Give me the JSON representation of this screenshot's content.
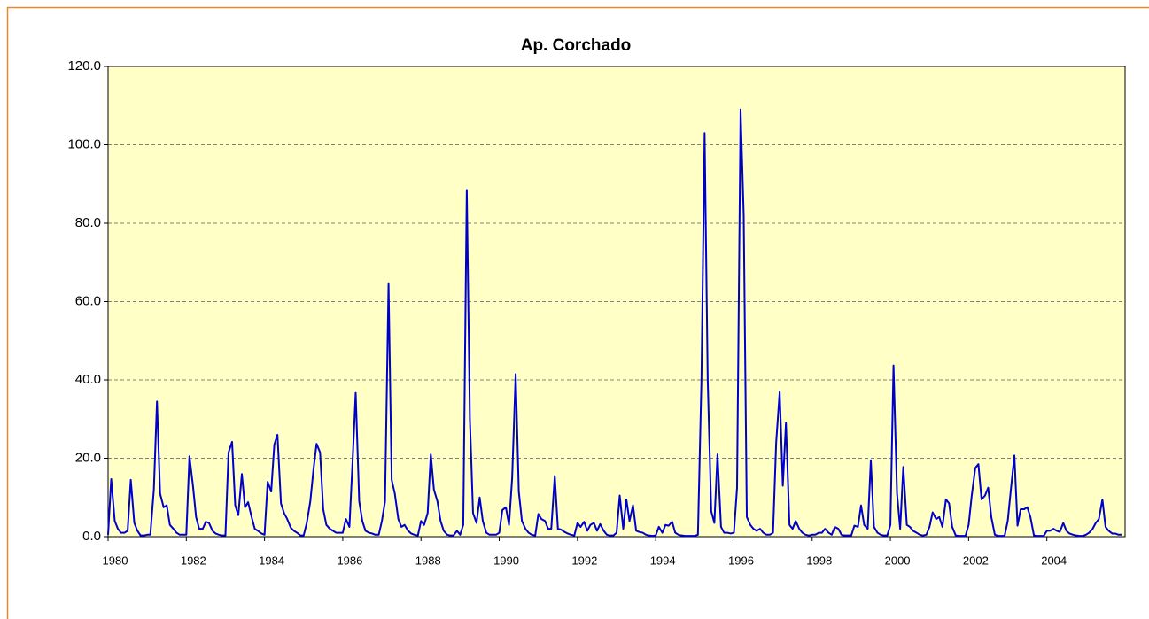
{
  "chart_data": {
    "type": "line",
    "title": "Ap. Corchado",
    "color": "#0000cc",
    "xlim": [
      1980,
      2006
    ],
    "xticks": [
      1980,
      1982,
      1984,
      1986,
      1988,
      1990,
      1992,
      1994,
      1996,
      1998,
      2000,
      2002,
      2004
    ],
    "ylim": [
      0,
      120
    ],
    "yticks": [
      {
        "value": 0,
        "label": "0.0"
      },
      {
        "value": 20,
        "label": "20.0"
      },
      {
        "value": 40,
        "label": "40.0"
      },
      {
        "value": 60,
        "label": "60.0"
      },
      {
        "value": 80,
        "label": "80.0"
      },
      {
        "value": 100,
        "label": "100.0"
      },
      {
        "value": 120,
        "label": "120.0"
      }
    ],
    "grid": true,
    "x": [
      1980,
      1980.08,
      1980.17,
      1980.25,
      1980.33,
      1980.42,
      1980.5,
      1980.58,
      1980.67,
      1980.75,
      1980.83,
      1980.92,
      1981,
      1981.08,
      1981.17,
      1981.25,
      1981.33,
      1981.42,
      1981.5,
      1981.58,
      1981.67,
      1981.75,
      1981.83,
      1981.92,
      1982,
      1982.08,
      1982.17,
      1982.25,
      1982.33,
      1982.42,
      1982.5,
      1982.58,
      1982.67,
      1982.75,
      1982.83,
      1982.92,
      1983,
      1983.08,
      1983.17,
      1983.25,
      1983.33,
      1983.42,
      1983.5,
      1983.58,
      1983.67,
      1983.75,
      1983.83,
      1983.92,
      1984,
      1984.08,
      1984.17,
      1984.25,
      1984.33,
      1984.42,
      1984.5,
      1984.58,
      1984.67,
      1984.75,
      1984.83,
      1984.92,
      1985,
      1985.08,
      1985.17,
      1985.25,
      1985.33,
      1985.42,
      1985.5,
      1985.58,
      1985.67,
      1985.75,
      1985.83,
      1985.92,
      1986,
      1986.08,
      1986.17,
      1986.25,
      1986.33,
      1986.42,
      1986.5,
      1986.58,
      1986.67,
      1986.75,
      1986.83,
      1986.92,
      1987,
      1987.08,
      1987.17,
      1987.25,
      1987.33,
      1987.42,
      1987.5,
      1987.58,
      1987.67,
      1987.75,
      1987.83,
      1987.92,
      1988,
      1988.08,
      1988.17,
      1988.25,
      1988.33,
      1988.42,
      1988.5,
      1988.58,
      1988.67,
      1988.75,
      1988.83,
      1988.92,
      1989,
      1989.08,
      1989.17,
      1989.25,
      1989.33,
      1989.42,
      1989.5,
      1989.58,
      1989.67,
      1989.75,
      1989.83,
      1989.92,
      1990,
      1990.08,
      1990.17,
      1990.25,
      1990.33,
      1990.42,
      1990.5,
      1990.58,
      1990.67,
      1990.75,
      1990.83,
      1990.92,
      1991,
      1991.08,
      1991.17,
      1991.25,
      1991.33,
      1991.42,
      1991.5,
      1991.58,
      1991.67,
      1991.75,
      1991.83,
      1991.92,
      1992,
      1992.08,
      1992.17,
      1992.25,
      1992.33,
      1992.42,
      1992.5,
      1992.58,
      1992.67,
      1992.75,
      1992.83,
      1992.92,
      1993,
      1993.08,
      1993.17,
      1993.25,
      1993.33,
      1993.42,
      1993.5,
      1993.58,
      1993.67,
      1993.75,
      1993.83,
      1993.92,
      1994,
      1994.08,
      1994.17,
      1994.25,
      1994.33,
      1994.42,
      1994.5,
      1994.58,
      1994.67,
      1994.75,
      1994.83,
      1994.92,
      1995,
      1995.08,
      1995.17,
      1995.25,
      1995.33,
      1995.42,
      1995.5,
      1995.58,
      1995.67,
      1995.75,
      1995.83,
      1995.92,
      1996,
      1996.08,
      1996.17,
      1996.25,
      1996.33,
      1996.42,
      1996.5,
      1996.58,
      1996.67,
      1996.75,
      1996.83,
      1996.92,
      1997,
      1997.08,
      1997.17,
      1997.25,
      1997.33,
      1997.42,
      1997.5,
      1997.58,
      1997.67,
      1997.75,
      1997.83,
      1997.92,
      1998,
      1998.08,
      1998.17,
      1998.25,
      1998.33,
      1998.42,
      1998.5,
      1998.58,
      1998.67,
      1998.75,
      1998.83,
      1998.92,
      1999,
      1999.08,
      1999.17,
      1999.25,
      1999.33,
      1999.42,
      1999.5,
      1999.58,
      1999.67,
      1999.75,
      1999.83,
      1999.92,
      2000,
      2000.08,
      2000.17,
      2000.25,
      2000.33,
      2000.42,
      2000.5,
      2000.58,
      2000.67,
      2000.75,
      2000.83,
      2000.92,
      2001,
      2001.08,
      2001.17,
      2001.25,
      2001.33,
      2001.42,
      2001.5,
      2001.58,
      2001.67,
      2001.75,
      2001.83,
      2001.92,
      2002,
      2002.08,
      2002.17,
      2002.25,
      2002.33,
      2002.42,
      2002.5,
      2002.58,
      2002.67,
      2002.75,
      2002.83,
      2002.92,
      2003,
      2003.08,
      2003.17,
      2003.25,
      2003.33,
      2003.42,
      2003.5,
      2003.58,
      2003.67,
      2003.75,
      2003.83,
      2003.92,
      2004,
      2004.08,
      2004.17,
      2004.25,
      2004.33,
      2004.42,
      2004.5,
      2004.58,
      2004.67,
      2004.75,
      2004.83,
      2004.92,
      2005,
      2005.08,
      2005.17,
      2005.25,
      2005.33,
      2005.42,
      2005.5,
      2005.58,
      2005.67,
      2005.75,
      2005.83,
      2005.92
    ],
    "values": [
      0.5,
      14.7,
      4,
      2,
      1,
      1,
      1.5,
      14.5,
      3.5,
      1.5,
      0.3,
      0.3,
      0.5,
      0.5,
      12,
      34.5,
      11,
      7.5,
      8,
      3,
      2,
      1,
      0.5,
      0.5,
      0.5,
      20.5,
      13,
      5,
      2,
      2,
      3.8,
      3.5,
      1.5,
      0.8,
      0.5,
      0.3,
      0.3,
      21.5,
      24.2,
      8,
      5.5,
      16,
      7.5,
      8.8,
      5,
      2,
      1.5,
      0.8,
      0.5,
      14,
      11.5,
      23.5,
      26,
      8.5,
      6,
      4.5,
      2.3,
      1.5,
      1,
      0.3,
      0.3,
      3.5,
      9,
      17,
      23.7,
      21.5,
      7,
      3,
      2,
      1.5,
      1,
      1,
      1,
      4.5,
      2.5,
      19,
      36.7,
      9,
      4,
      1.5,
      1,
      0.8,
      0.5,
      0.5,
      4,
      9,
      64.5,
      14.5,
      11,
      4.5,
      2.5,
      3,
      1.5,
      0.8,
      0.5,
      0.3,
      4,
      3,
      6,
      21,
      12,
      9,
      4,
      1.5,
      0.5,
      0.3,
      0.3,
      1.5,
      0.5,
      3,
      88.5,
      30,
      6,
      3.5,
      10,
      4,
      1,
      0.5,
      0.5,
      0.5,
      1,
      6.8,
      7.5,
      3,
      15,
      41.5,
      11.5,
      4,
      2,
      1,
      0.5,
      0.3,
      5.8,
      4.5,
      4,
      2,
      2,
      15.5,
      2,
      1.8,
      1.2,
      0.8,
      0.5,
      0.3,
      3.5,
      2.5,
      3.8,
      1.5,
      3,
      3.5,
      1.5,
      3.2,
      1.5,
      0.5,
      0.3,
      0.3,
      1,
      10.5,
      2,
      9.5,
      4,
      8,
      1.5,
      1.2,
      1,
      0.5,
      0.3,
      0.2,
      0.3,
      2.5,
      1,
      3,
      2.8,
      3.8,
      1,
      0.5,
      0.3,
      0.2,
      0.2,
      0.2,
      0.2,
      0.5,
      40,
      103,
      40,
      6.5,
      3.5,
      21,
      2.5,
      1,
      1,
      0.8,
      1,
      12.5,
      109,
      82,
      5,
      3,
      2,
      1.5,
      2,
      1,
      0.5,
      0.5,
      1,
      24,
      37,
      13,
      29,
      3,
      2,
      4,
      2,
      1,
      0.5,
      0.3,
      0.5,
      0.5,
      1,
      1,
      2,
      1,
      0.5,
      2.5,
      2,
      0.5,
      0.3,
      0.3,
      0.3,
      2.8,
      2.5,
      8,
      3,
      2,
      19.5,
      2.5,
      1,
      0.5,
      0.3,
      0.3,
      3,
      43.7,
      11,
      2,
      17.8,
      3,
      2.5,
      1.5,
      1,
      0.5,
      0.3,
      0.5,
      2.5,
      6.2,
      4.5,
      5,
      2.5,
      9.5,
      8.5,
      2.5,
      0.3,
      0.2,
      0.2,
      0.2,
      3,
      10.5,
      17.5,
      18.5,
      9.5,
      10.5,
      12.5,
      5,
      0.5,
      0.2,
      0.2,
      0.2,
      4,
      12,
      20.7,
      2.8,
      7,
      7,
      7.5,
      5,
      0.3,
      0.2,
      0.2,
      0.2,
      1.5,
      1.5,
      2,
      1.5,
      1.2,
      3.5,
      1.5,
      0.8,
      0.5,
      0.3,
      0.2,
      0.2,
      0.5,
      1,
      2,
      3.5,
      4.5,
      9.5,
      2.5,
      1.5,
      0.8,
      0.8,
      0.5,
      0.5
    ]
  }
}
